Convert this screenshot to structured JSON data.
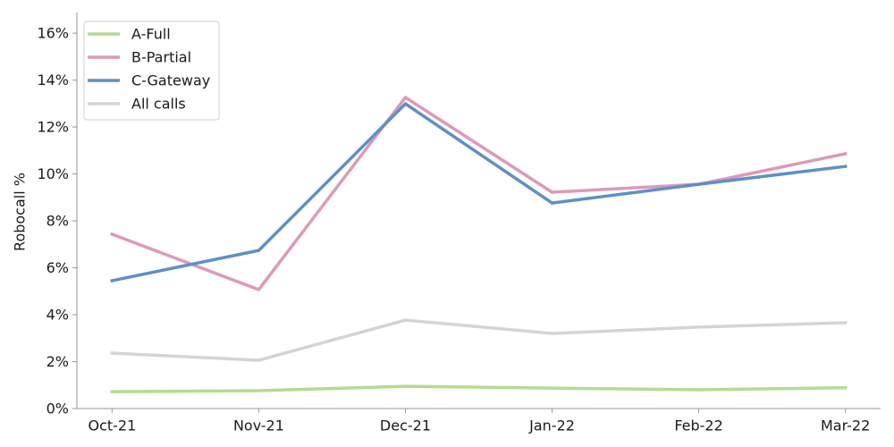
{
  "chart_data": {
    "type": "line",
    "title": "",
    "xlabel": "",
    "ylabel": "Robocall %",
    "categories": [
      "Oct-21",
      "Nov-21",
      "Dec-21",
      "Jan-22",
      "Feb-22",
      "Mar-22"
    ],
    "ylim": [
      0,
      16.88
    ],
    "y_ticks": [
      0,
      2,
      4,
      6,
      8,
      10,
      12,
      14,
      16
    ],
    "y_tick_labels": [
      "0%",
      "2%",
      "4%",
      "6%",
      "8%",
      "10%",
      "12%",
      "14%",
      "16%"
    ],
    "grid": false,
    "legend": "top-left",
    "series": [
      {
        "name": "A-Full",
        "color": "#b3dc91",
        "values": [
          0.72,
          0.76,
          0.95,
          0.87,
          0.8,
          0.89
        ]
      },
      {
        "name": "B-Partial",
        "color": "#dc9ab9",
        "values": [
          7.43,
          5.07,
          13.26,
          9.22,
          9.56,
          10.86
        ]
      },
      {
        "name": "C-Gateway",
        "color": "#5f8fc8",
        "values": [
          5.45,
          6.74,
          12.99,
          8.76,
          9.56,
          10.32
        ]
      },
      {
        "name": "All calls",
        "color": "#d4d4d4",
        "values": [
          2.36,
          2.06,
          3.77,
          3.2,
          3.47,
          3.66
        ]
      }
    ]
  }
}
